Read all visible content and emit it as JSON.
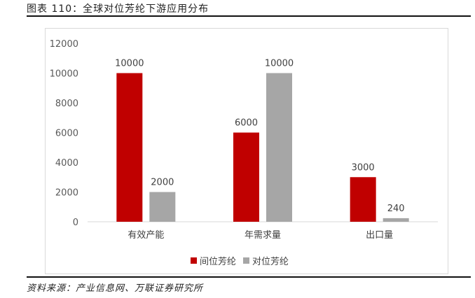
{
  "figure": {
    "title": "图表 110：全球对位芳纶下游应用分布",
    "source": "资料来源：产业信息网、万联证券研究所"
  },
  "chart_data": {
    "type": "bar",
    "categories": [
      "有效产能",
      "年需求量",
      "出口量"
    ],
    "series": [
      {
        "name": "间位芳纶",
        "values": [
          10000,
          6000,
          3000
        ],
        "color": "#C00000"
      },
      {
        "name": "对位芳纶",
        "values": [
          2000,
          10000,
          240
        ],
        "color": "#A6A6A6"
      }
    ],
    "ylim": [
      0,
      12000
    ],
    "yticks": [
      0,
      2000,
      4000,
      6000,
      8000,
      10000,
      12000
    ],
    "grid": false,
    "legend": "bottom"
  }
}
